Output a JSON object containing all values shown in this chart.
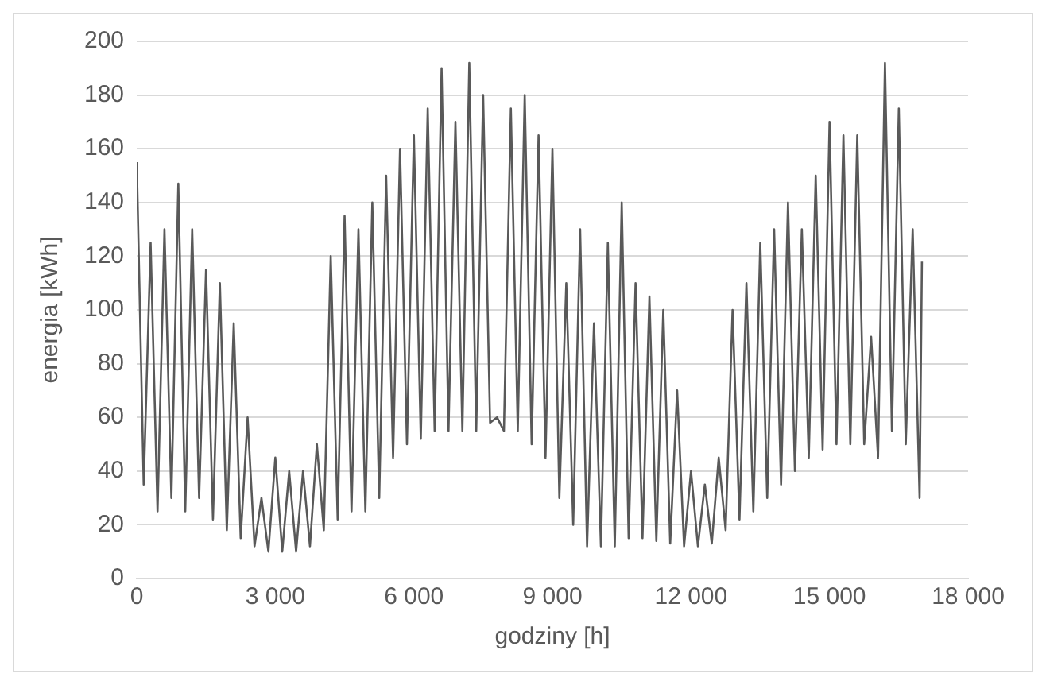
{
  "chart_data": {
    "type": "line",
    "xlabel": "godziny [h]",
    "ylabel": "energia [kWh]",
    "xlim": [
      0,
      18000
    ],
    "xticks": [
      0,
      {
        "value": 3000,
        "label": "3 000"
      },
      {
        "value": 6000,
        "label": "6 000"
      },
      {
        "value": 9000,
        "label": "9 000"
      },
      {
        "value": 12000,
        "label": "12 000"
      },
      {
        "value": 15000,
        "label": "15 000"
      },
      {
        "value": 18000,
        "label": "18 000"
      }
    ],
    "ylim": [
      0,
      200
    ],
    "yticks": [
      0,
      20,
      40,
      60,
      80,
      100,
      120,
      140,
      160,
      180,
      200
    ],
    "grid": "y",
    "legend": false,
    "marker": "none",
    "line_style": "solid",
    "x": [
      0,
      150,
      300,
      450,
      600,
      750,
      900,
      1050,
      1200,
      1350,
      1500,
      1650,
      1800,
      1950,
      2100,
      2250,
      2400,
      2550,
      2700,
      2850,
      3000,
      3150,
      3300,
      3450,
      3600,
      3750,
      3900,
      4050,
      4200,
      4350,
      4500,
      4650,
      4800,
      4950,
      5100,
      5250,
      5400,
      5550,
      5700,
      5850,
      6000,
      6150,
      6300,
      6450,
      6600,
      6750,
      6900,
      7050,
      7200,
      7350,
      7500,
      7650,
      7800,
      7950,
      8100,
      8250,
      8400,
      8550,
      8700,
      8850,
      9000,
      9150,
      9300,
      9450,
      9600,
      9750,
      9900,
      10050,
      10200,
      10350,
      10500,
      10650,
      10800,
      10950,
      11100,
      11250,
      11400,
      11550,
      11700,
      11850,
      12000,
      12150,
      12300,
      12450,
      12600,
      12750,
      12900,
      13050,
      13200,
      13350,
      13500,
      13650,
      13800,
      13950,
      14100,
      14250,
      14400,
      14550,
      14700,
      14850,
      15000,
      15150,
      15300,
      15450,
      15600,
      15750,
      15900,
      16050,
      16200,
      16350,
      16500,
      16650,
      16800,
      16950,
      17000
    ],
    "series": [
      {
        "color": "#595959",
        "values": [
          155,
          35,
          125,
          25,
          130,
          30,
          147,
          25,
          130,
          30,
          115,
          22,
          110,
          18,
          95,
          15,
          60,
          12,
          30,
          10,
          45,
          10,
          40,
          10,
          40,
          12,
          50,
          18,
          120,
          22,
          135,
          25,
          130,
          25,
          140,
          30,
          150,
          45,
          160,
          50,
          165,
          52,
          175,
          55,
          190,
          55,
          170,
          55,
          192,
          55,
          180,
          58,
          60,
          55,
          175,
          55,
          180,
          50,
          165,
          45,
          160,
          30,
          110,
          20,
          130,
          12,
          95,
          12,
          125,
          12,
          140,
          15,
          110,
          15,
          105,
          14,
          100,
          13,
          70,
          12,
          40,
          12,
          35,
          13,
          45,
          18,
          100,
          22,
          110,
          25,
          125,
          30,
          130,
          35,
          140,
          40,
          130,
          45,
          150,
          48,
          170,
          50,
          165,
          50,
          165,
          50,
          90,
          45,
          192,
          55,
          175,
          50,
          130,
          30,
          118
        ]
      }
    ]
  }
}
